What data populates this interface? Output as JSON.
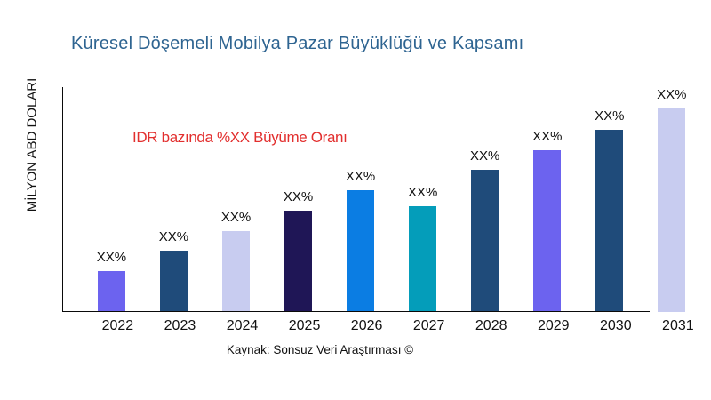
{
  "title": {
    "text": "Küresel Döşemeli Mobilya Pazar Büyüklüğü ve Kapsamı",
    "color": "#2e6491"
  },
  "annotation": {
    "text": "IDR bazında %XX Büyüme Oranı",
    "color": "#e22f2e"
  },
  "source_note": "Kaynak: Sonsuz Veri Araştırması ©",
  "chart_data": {
    "type": "bar",
    "title": "Küresel Döşemeli Mobilya Pazar Büyüklüğü ve Kapsamı",
    "ylabel": "MİLYON ABD DOLARI",
    "xlabel": "",
    "categories": [
      "2022",
      "2023",
      "2024",
      "2025",
      "2026",
      "2027",
      "2028",
      "2029",
      "2030",
      "2031"
    ],
    "values": [
      46,
      69,
      91,
      114,
      137,
      119,
      160,
      182,
      205,
      229
    ],
    "values_unit": "px-height (no numeric axis shown)",
    "bar_labels": [
      "XX%",
      "XX%",
      "XX%",
      "XX%",
      "XX%",
      "XX%",
      "XX%",
      "XX%",
      "XX%",
      "XX%"
    ],
    "bar_colors": [
      "#6c63ef",
      "#1f4b7a",
      "#c8ccf0",
      "#1f1656",
      "#0b7de3",
      "#049dba",
      "#1f4b7a",
      "#6c63ef",
      "#1f4b7a",
      "#c8ccf0"
    ],
    "grid": false,
    "legend": null,
    "axis_color": "#0a0a0a"
  }
}
